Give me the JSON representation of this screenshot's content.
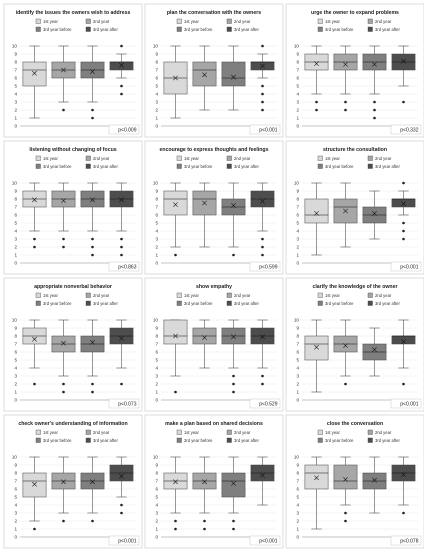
{
  "legend": [
    "1st year",
    "2nd year",
    "3rd year before",
    "3rd year after"
  ],
  "colors": [
    "#d9d9d9",
    "#a6a6a6",
    "#7f7f7f",
    "#4d4d4d"
  ],
  "chart_data": [
    {
      "type": "box",
      "title": "identify the issues the owners wish to address",
      "ylim": [
        0,
        10
      ],
      "yticks": [
        0,
        1,
        2,
        3,
        4,
        5,
        6,
        7,
        8,
        9,
        10
      ],
      "p": "p<0.009",
      "series": [
        {
          "name": "1st year",
          "min": 1,
          "q1": 5,
          "median": 7,
          "q3": 8,
          "max": 10,
          "mean": 6.6,
          "outliers": []
        },
        {
          "name": "2nd year",
          "min": 3,
          "q1": 6,
          "median": 7,
          "q3": 8,
          "max": 10,
          "mean": 7.0,
          "outliers": [
            2
          ]
        },
        {
          "name": "3rd year before",
          "min": 3,
          "q1": 6,
          "median": 7,
          "q3": 8,
          "max": 10,
          "mean": 6.8,
          "outliers": [
            2,
            1
          ]
        },
        {
          "name": "3rd year after",
          "min": 6,
          "q1": 7,
          "median": 8,
          "q3": 8,
          "max": 9,
          "mean": 7.6,
          "outliers": [
            10,
            5,
            4
          ]
        }
      ]
    },
    {
      "type": "box",
      "title": "plan the conversation with the owners",
      "ylim": [
        0,
        10
      ],
      "yticks": [
        0,
        1,
        2,
        3,
        4,
        5,
        6,
        7,
        8,
        9,
        10
      ],
      "p": "p<0.001",
      "series": [
        {
          "name": "1st year",
          "min": 1,
          "q1": 4,
          "median": 6,
          "q3": 8,
          "max": 10,
          "mean": 6.0,
          "outliers": []
        },
        {
          "name": "2nd year",
          "min": 2,
          "q1": 5,
          "median": 7,
          "q3": 8,
          "max": 10,
          "mean": 6.4,
          "outliers": []
        },
        {
          "name": "3rd year before",
          "min": 2,
          "q1": 5,
          "median": 6,
          "q3": 8,
          "max": 10,
          "mean": 6.1,
          "outliers": []
        },
        {
          "name": "3rd year after",
          "min": 6,
          "q1": 7,
          "median": 8,
          "q3": 8,
          "max": 9,
          "mean": 7.5,
          "outliers": [
            10,
            5,
            4,
            3,
            2
          ]
        }
      ]
    },
    {
      "type": "box",
      "title": "urge the owner to expand problems",
      "ylim": [
        0,
        10
      ],
      "yticks": [
        0,
        1,
        2,
        3,
        4,
        5,
        6,
        7,
        8,
        9,
        10
      ],
      "p": "p<0.332",
      "series": [
        {
          "name": "1st year",
          "min": 4,
          "q1": 7,
          "median": 8,
          "q3": 9,
          "max": 10,
          "mean": 7.8,
          "outliers": [
            3,
            2
          ]
        },
        {
          "name": "2nd year",
          "min": 4,
          "q1": 7,
          "median": 8,
          "q3": 9,
          "max": 10,
          "mean": 7.7,
          "outliers": [
            3,
            2
          ]
        },
        {
          "name": "3rd year before",
          "min": 4,
          "q1": 7,
          "median": 8,
          "q3": 9,
          "max": 10,
          "mean": 7.7,
          "outliers": [
            3,
            2,
            1
          ]
        },
        {
          "name": "3rd year after",
          "min": 5,
          "q1": 7,
          "median": 8,
          "q3": 9,
          "max": 10,
          "mean": 8.1,
          "outliers": [
            3
          ]
        }
      ]
    },
    {
      "type": "box",
      "title": "listening without changing of focus",
      "ylim": [
        0,
        10
      ],
      "yticks": [
        0,
        1,
        2,
        3,
        4,
        5,
        6,
        7,
        8,
        9,
        10
      ],
      "p": "p<0.863",
      "series": [
        {
          "name": "1st year",
          "min": 4,
          "q1": 7,
          "median": 8,
          "q3": 9,
          "max": 10,
          "mean": 7.9,
          "outliers": [
            3,
            2
          ]
        },
        {
          "name": "2nd year",
          "min": 4,
          "q1": 7,
          "median": 8,
          "q3": 9,
          "max": 10,
          "mean": 7.8,
          "outliers": [
            3,
            2
          ]
        },
        {
          "name": "3rd year before",
          "min": 4,
          "q1": 7,
          "median": 8,
          "q3": 9,
          "max": 10,
          "mean": 7.9,
          "outliers": [
            3,
            2,
            1
          ]
        },
        {
          "name": "3rd year after",
          "min": 4,
          "q1": 7,
          "median": 8,
          "q3": 9,
          "max": 10,
          "mean": 7.9,
          "outliers": [
            3,
            2,
            1
          ]
        }
      ]
    },
    {
      "type": "box",
      "title": "encourage to express thoughts and feelings",
      "ylim": [
        0,
        10
      ],
      "yticks": [
        0,
        1,
        2,
        3,
        4,
        5,
        6,
        7,
        8,
        9,
        10
      ],
      "p": "p<0.599",
      "series": [
        {
          "name": "1st year",
          "min": 2,
          "q1": 6,
          "median": 8,
          "q3": 9,
          "max": 10,
          "mean": 7.3,
          "outliers": [
            1
          ]
        },
        {
          "name": "2nd year",
          "min": 2,
          "q1": 6,
          "median": 8,
          "q3": 9,
          "max": 10,
          "mean": 7.5,
          "outliers": []
        },
        {
          "name": "3rd year before",
          "min": 2,
          "q1": 6,
          "median": 7,
          "q3": 8,
          "max": 10,
          "mean": 7.2,
          "outliers": [
            1
          ]
        },
        {
          "name": "3rd year after",
          "min": 4,
          "q1": 7,
          "median": 8,
          "q3": 9,
          "max": 10,
          "mean": 7.7,
          "outliers": [
            3,
            2,
            1
          ]
        }
      ]
    },
    {
      "type": "box",
      "title": "structure the consultation",
      "ylim": [
        0,
        10
      ],
      "yticks": [
        0,
        1,
        2,
        3,
        4,
        5,
        6,
        7,
        8,
        9,
        10
      ],
      "p": "p<0.001",
      "series": [
        {
          "name": "1st year",
          "min": 1,
          "q1": 5,
          "median": 6,
          "q3": 8,
          "max": 10,
          "mean": 6.2,
          "outliers": []
        },
        {
          "name": "2nd year",
          "min": 2,
          "q1": 5,
          "median": 7,
          "q3": 8,
          "max": 10,
          "mean": 6.5,
          "outliers": []
        },
        {
          "name": "3rd year before",
          "min": 3,
          "q1": 5,
          "median": 6,
          "q3": 7,
          "max": 9,
          "mean": 6.2,
          "outliers": []
        },
        {
          "name": "3rd year after",
          "min": 6,
          "q1": 7,
          "median": 8,
          "q3": 8,
          "max": 9,
          "mean": 7.4,
          "outliers": [
            10,
            5,
            4,
            3
          ]
        }
      ]
    },
    {
      "type": "box",
      "title": "appropriate nonverbal behavior",
      "ylim": [
        0,
        10
      ],
      "yticks": [
        0,
        1,
        2,
        3,
        4,
        5,
        6,
        7,
        8,
        9,
        10
      ],
      "p": "p<0.073",
      "series": [
        {
          "name": "1st year",
          "min": 4,
          "q1": 7,
          "median": 8,
          "q3": 9,
          "max": 10,
          "mean": 7.6,
          "outliers": [
            2
          ]
        },
        {
          "name": "2nd year",
          "min": 3,
          "q1": 6,
          "median": 7,
          "q3": 8,
          "max": 10,
          "mean": 7.1,
          "outliers": [
            2,
            1
          ]
        },
        {
          "name": "3rd year before",
          "min": 3,
          "q1": 6,
          "median": 7,
          "q3": 8,
          "max": 10,
          "mean": 7.2,
          "outliers": [
            2,
            1
          ]
        },
        {
          "name": "3rd year after",
          "min": 4,
          "q1": 7,
          "median": 8,
          "q3": 9,
          "max": 10,
          "mean": 7.7,
          "outliers": [
            2
          ]
        }
      ]
    },
    {
      "type": "box",
      "title": "show empathy",
      "ylim": [
        0,
        10
      ],
      "yticks": [
        0,
        1,
        2,
        3,
        4,
        5,
        6,
        7,
        8,
        9,
        10
      ],
      "p": "p<0.529",
      "series": [
        {
          "name": "1st year",
          "min": 3,
          "q1": 7,
          "median": 8,
          "q3": 10,
          "max": 10,
          "mean": 8.0,
          "outliers": [
            1
          ]
        },
        {
          "name": "2nd year",
          "min": 4,
          "q1": 7,
          "median": 8,
          "q3": 9,
          "max": 10,
          "mean": 7.8,
          "outliers": []
        },
        {
          "name": "3rd year before",
          "min": 4,
          "q1": 7,
          "median": 8,
          "q3": 9,
          "max": 10,
          "mean": 7.9,
          "outliers": [
            3,
            2,
            1
          ]
        },
        {
          "name": "3rd year after",
          "min": 4,
          "q1": 7,
          "median": 8,
          "q3": 9,
          "max": 10,
          "mean": 7.9,
          "outliers": [
            3,
            2
          ]
        }
      ]
    },
    {
      "type": "box",
      "title": "clarify the knowledge of the owner",
      "ylim": [
        0,
        10
      ],
      "yticks": [
        0,
        1,
        2,
        3,
        4,
        5,
        6,
        7,
        8,
        9,
        10
      ],
      "p": "p<0.001",
      "series": [
        {
          "name": "1st year",
          "min": 1,
          "q1": 5,
          "median": 7,
          "q3": 8,
          "max": 10,
          "mean": 6.6,
          "outliers": []
        },
        {
          "name": "2nd year",
          "min": 3,
          "q1": 6,
          "median": 7,
          "q3": 8,
          "max": 10,
          "mean": 6.8,
          "outliers": [
            2
          ]
        },
        {
          "name": "3rd year before",
          "min": 3,
          "q1": 5,
          "median": 6,
          "q3": 7,
          "max": 9,
          "mean": 6.3,
          "outliers": []
        },
        {
          "name": "3rd year after",
          "min": 4,
          "q1": 7,
          "median": 8,
          "q3": 8,
          "max": 10,
          "mean": 7.3,
          "outliers": [
            2
          ]
        }
      ]
    },
    {
      "type": "box",
      "title": "check owner's understanding of information",
      "ylim": [
        0,
        10
      ],
      "yticks": [
        0,
        1,
        2,
        3,
        4,
        5,
        6,
        7,
        8,
        9,
        10
      ],
      "p": "p<0.001",
      "series": [
        {
          "name": "1st year",
          "min": 2,
          "q1": 5,
          "median": 7,
          "q3": 8,
          "max": 10,
          "mean": 6.6,
          "outliers": [
            1
          ]
        },
        {
          "name": "2nd year",
          "min": 3,
          "q1": 6,
          "median": 7,
          "q3": 8,
          "max": 10,
          "mean": 6.9,
          "outliers": [
            2
          ]
        },
        {
          "name": "3rd year before",
          "min": 3,
          "q1": 6,
          "median": 7,
          "q3": 8,
          "max": 10,
          "mean": 6.9,
          "outliers": [
            2
          ]
        },
        {
          "name": "3rd year after",
          "min": 5,
          "q1": 7,
          "median": 8,
          "q3": 9,
          "max": 10,
          "mean": 7.6,
          "outliers": [
            4,
            3
          ]
        }
      ]
    },
    {
      "type": "box",
      "title": "make a plan based on shared decisions",
      "ylim": [
        0,
        10
      ],
      "yticks": [
        0,
        1,
        2,
        3,
        4,
        5,
        6,
        7,
        8,
        9,
        10
      ],
      "p": "p<0.001",
      "series": [
        {
          "name": "1st year",
          "min": 3,
          "q1": 6,
          "median": 7,
          "q3": 8,
          "max": 10,
          "mean": 6.9,
          "outliers": [
            2,
            1
          ]
        },
        {
          "name": "2nd year",
          "min": 3,
          "q1": 6,
          "median": 7,
          "q3": 8,
          "max": 10,
          "mean": 6.9,
          "outliers": [
            2,
            1
          ]
        },
        {
          "name": "3rd year before",
          "min": 3,
          "q1": 5,
          "median": 7,
          "q3": 8,
          "max": 10,
          "mean": 6.7,
          "outliers": [
            2,
            1
          ]
        },
        {
          "name": "3rd year after",
          "min": 4,
          "q1": 7,
          "median": 8,
          "q3": 9,
          "max": 10,
          "mean": 7.7,
          "outliers": []
        }
      ]
    },
    {
      "type": "box",
      "title": "close the conversation",
      "ylim": [
        0,
        10
      ],
      "yticks": [
        0,
        1,
        2,
        3,
        4,
        5,
        6,
        7,
        8,
        9,
        10
      ],
      "p": "p<0.078",
      "series": [
        {
          "name": "1st year",
          "min": 1,
          "q1": 6,
          "median": 8,
          "q3": 9,
          "max": 10,
          "mean": 7.4,
          "outliers": []
        },
        {
          "name": "2nd year",
          "min": 4,
          "q1": 6,
          "median": 7,
          "q3": 9,
          "max": 10,
          "mean": 7.2,
          "outliers": [
            3,
            2
          ]
        },
        {
          "name": "3rd year before",
          "min": 3,
          "q1": 6,
          "median": 7,
          "q3": 8,
          "max": 10,
          "mean": 7.1,
          "outliers": []
        },
        {
          "name": "3rd year after",
          "min": 4,
          "q1": 7,
          "median": 8,
          "q3": 9,
          "max": 10,
          "mean": 7.8,
          "outliers": [
            3
          ]
        }
      ]
    }
  ]
}
